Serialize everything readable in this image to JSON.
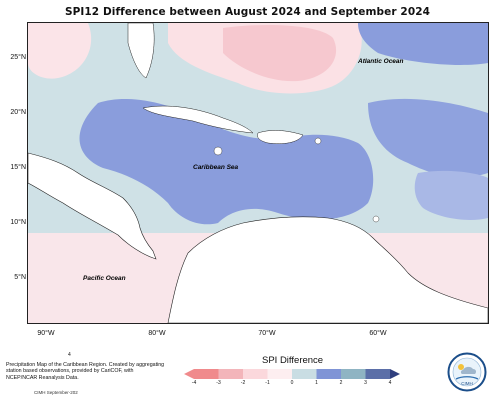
{
  "title": "SPI12 Difference between August 2024 and September 2024",
  "map": {
    "labels": {
      "atlantic": "Atlantic Ocean",
      "caribbean": "Caribbean Sea",
      "pacific": "Pacific Ocean"
    },
    "lat_ticks": [
      "25°N",
      "20°N",
      "15°N",
      "10°N",
      "5°N"
    ],
    "lon_ticks": [
      "90°W",
      "80°W",
      "70°W",
      "60°W"
    ]
  },
  "legend": {
    "title": "SPI Difference",
    "ticks": [
      "-4",
      "-3",
      "-2",
      "-1",
      "0",
      "1",
      "2",
      "3",
      "4"
    ],
    "colors": [
      "#f08a8c",
      "#f3b5ba",
      "#fbd8dc",
      "#fdeef0",
      "#c9dde3",
      "#7f94d6",
      "#8fb4c3",
      "#5b6fa8",
      "#2f3f7e"
    ]
  },
  "footer": {
    "marker": "4",
    "note": "Precipitation Map of the Caribbean Region. Created by aggregating station based observations, provided by CariCOF, with NCEP/NCAR Reanalysis Data.",
    "stamp": "CIMH September-202",
    "logo_text": "CIMH"
  }
}
